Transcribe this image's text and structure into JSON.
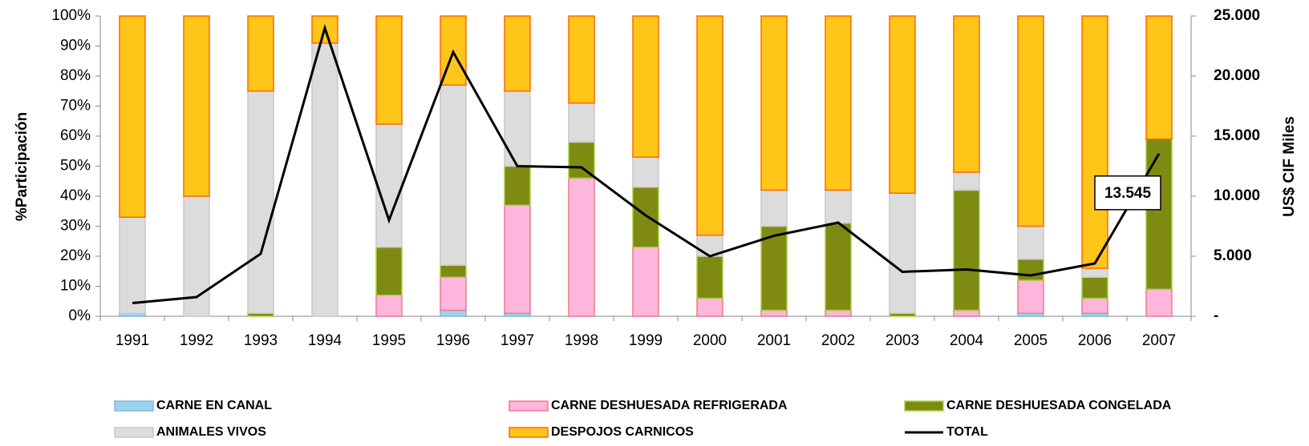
{
  "chart_data": {
    "type": "bar",
    "stacked": true,
    "categories": [
      "1991",
      "1992",
      "1993",
      "1994",
      "1995",
      "1996",
      "1997",
      "1998",
      "1999",
      "2000",
      "2001",
      "2002",
      "2003",
      "2004",
      "2005",
      "2006",
      "2007"
    ],
    "y_label": "%Participación",
    "y2_label": "US$ CIF Miles",
    "ylim": [
      0,
      100
    ],
    "yticks": [
      {
        "value": 0,
        "label": "0%"
      },
      {
        "value": 10,
        "label": "10%"
      },
      {
        "value": 20,
        "label": "20%"
      },
      {
        "value": 30,
        "label": "30%"
      },
      {
        "value": 40,
        "label": "40%"
      },
      {
        "value": 50,
        "label": "50%"
      },
      {
        "value": 60,
        "label": "60%"
      },
      {
        "value": 70,
        "label": "70%"
      },
      {
        "value": 80,
        "label": "80%"
      },
      {
        "value": 90,
        "label": "90%"
      },
      {
        "value": 100,
        "label": "100%"
      }
    ],
    "y2lim": [
      0,
      25000
    ],
    "y2ticks": [
      {
        "value": 0,
        "label": "-"
      },
      {
        "value": 5000,
        "label": "5.000"
      },
      {
        "value": 10000,
        "label": "10.000"
      },
      {
        "value": 15000,
        "label": "15.000"
      },
      {
        "value": 20000,
        "label": "20.000"
      },
      {
        "value": 25000,
        "label": "25.000"
      }
    ],
    "series": [
      {
        "name": "CARNE EN CANAL",
        "color": "#9dd3f0",
        "values": [
          1,
          0,
          0,
          0,
          0,
          2,
          1,
          0,
          0,
          0,
          0,
          0,
          0,
          0,
          1,
          1,
          0
        ]
      },
      {
        "name": "CARNE DESHUESADA REFRIGERADA",
        "color": "#ffb6dc",
        "values": [
          0,
          0,
          0,
          0,
          7,
          11,
          36,
          46,
          23,
          6,
          2,
          2,
          0,
          2,
          11,
          5,
          9
        ]
      },
      {
        "name": "CARNE DESHUESADA CONGELADA",
        "color": "#7f8a12",
        "values": [
          0,
          0,
          1,
          0,
          16,
          4,
          13,
          12,
          20,
          14,
          28,
          29,
          1,
          40,
          7,
          7,
          50
        ]
      },
      {
        "name": "ANIMALES VIVOS",
        "color": "#dcdcdc",
        "values": [
          32,
          40,
          74,
          91,
          41,
          60,
          25,
          13,
          10,
          7,
          12,
          11,
          40,
          6,
          11,
          3,
          0
        ]
      },
      {
        "name": "DESPOJOS CARNICOS",
        "color": "#ffc61a",
        "values": [
          67,
          60,
          25,
          9,
          36,
          23,
          25,
          29,
          47,
          73,
          58,
          58,
          59,
          52,
          70,
          84,
          41
        ]
      },
      {
        "name": "TOTAL",
        "type": "line",
        "axis": "y2",
        "color": "#000000",
        "values": [
          1100,
          1600,
          5200,
          24000,
          8000,
          22000,
          12500,
          12400,
          8400,
          5000,
          6700,
          7800,
          3700,
          3900,
          3400,
          4400,
          13545
        ],
        "value_labels": [
          null,
          null,
          null,
          null,
          null,
          null,
          null,
          null,
          null,
          null,
          null,
          null,
          null,
          null,
          null,
          null,
          "13.545"
        ]
      }
    ]
  }
}
